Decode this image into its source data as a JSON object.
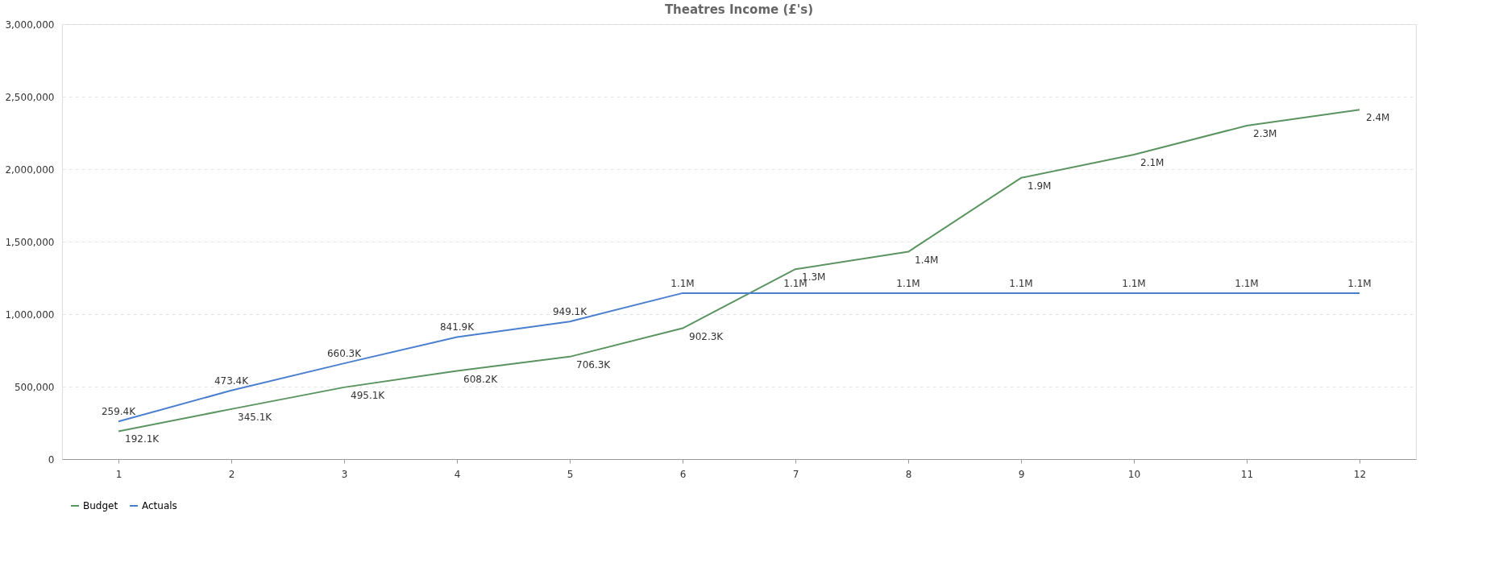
{
  "chart_data": {
    "type": "line",
    "title": "Theatres Income (£'s)",
    "categories": [
      "1",
      "2",
      "3",
      "4",
      "5",
      "6",
      "7",
      "8",
      "9",
      "10",
      "11",
      "12"
    ],
    "ylim": [
      0,
      3000000
    ],
    "yticks": [
      {
        "value": 0,
        "label": "0"
      },
      {
        "value": 500000,
        "label": "500,000"
      },
      {
        "value": 1000000,
        "label": "1,000,000"
      },
      {
        "value": 1500000,
        "label": "1,500,000"
      },
      {
        "value": 2000000,
        "label": "2,000,000"
      },
      {
        "value": 2500000,
        "label": "2,500,000"
      },
      {
        "value": 3000000,
        "label": "3,000,000"
      }
    ],
    "grid": "y",
    "legend": "bottom",
    "marker": "none",
    "line_style": "solid",
    "series": [
      {
        "name": "Budget",
        "color": "#5b9461",
        "values": [
          192100,
          345100,
          495100,
          608200,
          706300,
          902300,
          1310000,
          1430000,
          1940000,
          2100000,
          2300000,
          2410000
        ],
        "value_labels": [
          "192.1K",
          "345.1K",
          "495.1K",
          "608.2K",
          "706.3K",
          "902.3K",
          "1.3M",
          "1.4M",
          "1.9M",
          "2.1M",
          "2.3M",
          "2.4M"
        ]
      },
      {
        "name": "Actuals",
        "color": "#4a7fcf",
        "values": [
          259400,
          473400,
          660300,
          841900,
          949100,
          1145000,
          1145000,
          1145000,
          1145000,
          1145000,
          1145000,
          1145000
        ],
        "value_labels": [
          "259.4K",
          "473.4K",
          "660.3K",
          "841.9K",
          "949.1K",
          "1.1M",
          "1.1M",
          "1.1M",
          "1.1M",
          "1.1M",
          "1.1M",
          "1.1M"
        ]
      }
    ]
  }
}
